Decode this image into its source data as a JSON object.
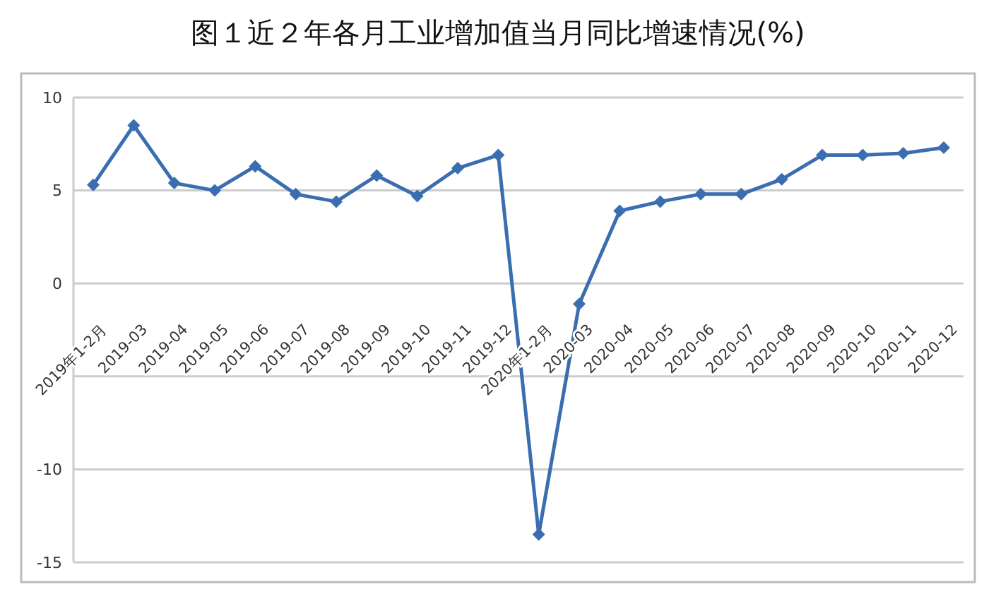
{
  "chart_data": {
    "type": "line",
    "title": "图１近２年各月工业增加值当月同比增速情况(%)",
    "categories": [
      "2019年1-2月",
      "2019-03",
      "2019-04",
      "2019-05",
      "2019-06",
      "2019-07",
      "2019-08",
      "2019-09",
      "2019-10",
      "2019-11",
      "2019-12",
      "2020年1-2月",
      "2020-03",
      "2020-04",
      "2020-05",
      "2020-06",
      "2020-07",
      "2020-08",
      "2020-09",
      "2020-10",
      "2020-11",
      "2020-12"
    ],
    "series": [
      {
        "color": "#3a6eb0",
        "values": [
          5.3,
          8.5,
          5.4,
          5.0,
          6.3,
          4.8,
          4.4,
          5.8,
          4.7,
          6.2,
          6.9,
          -13.5,
          -1.1,
          3.9,
          4.4,
          4.8,
          4.8,
          5.6,
          6.9,
          6.9,
          7.0,
          7.3
        ]
      }
    ],
    "ylim": [
      -15,
      10
    ],
    "yticks": [
      -15,
      -10,
      -5,
      0,
      5,
      10
    ],
    "grid": "y",
    "marker": "diamond",
    "line_style": "solid"
  }
}
